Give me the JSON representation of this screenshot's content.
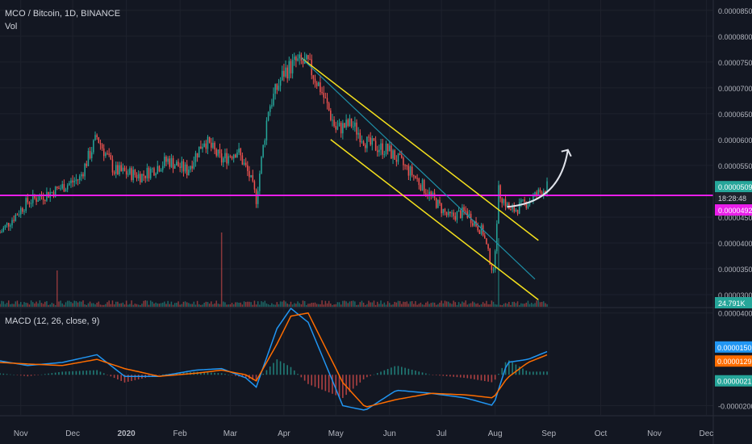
{
  "header": {
    "symbol_line": "MCO / Bitcoin, 1D, BINANCE",
    "volume_label": "Vol",
    "macd_label": "MACD (12, 26, close, 9)"
  },
  "colors": {
    "background": "#131722",
    "grid": "#1e222d",
    "candle_up": "#26a69a",
    "candle_down": "#ef5350",
    "support_line": "#e91ee9",
    "channel_lines": "#f5e11d",
    "midline": "#1e8fa6",
    "macd_line": "#2196f3",
    "signal_line": "#ff6d00",
    "annotation_arrow": "#e0e3eb"
  },
  "price_axis": {
    "ticks": [
      "0.00008500",
      "0.00008000",
      "0.00007500",
      "0.00007000",
      "0.00006500",
      "0.00006000",
      "0.00005500",
      "0.00004500",
      "0.00004000",
      "0.00003500",
      "0.00003000"
    ],
    "last_price_label": "0.00005095",
    "countdown_label": "18:28:48",
    "support_price_label": "0.00004923",
    "volume_label": "24.791K"
  },
  "macd_axis": {
    "ticks": [
      "0.0000400",
      "-0.0000200"
    ],
    "macd_value_label": "0.0000150",
    "signal_value_label": "0.0000129",
    "histogram_value_label": "0.0000021"
  },
  "time_axis": {
    "ticks": [
      "Nov",
      "Dec",
      "2020",
      "Feb",
      "Mar",
      "Apr",
      "May",
      "Jun",
      "Jul",
      "Aug",
      "Sep",
      "Oct",
      "Nov",
      "Dec"
    ]
  },
  "chart_data": {
    "type": "candlestick",
    "title": "MCO / Bitcoin, 1D, BINANCE",
    "unit": "BTC",
    "x_range": [
      "2019-10-20",
      "2020-12-05"
    ],
    "y_range": [
      2.75e-05,
      8.7e-05
    ],
    "price_path": [
      {
        "date": "2019-10-20",
        "close": 4.2e-05
      },
      {
        "date": "2019-11-05",
        "close": 4.8e-05
      },
      {
        "date": "2019-11-20",
        "close": 5e-05
      },
      {
        "date": "2019-12-05",
        "close": 5.25e-05
      },
      {
        "date": "2019-12-15",
        "close": 6.05e-05
      },
      {
        "date": "2019-12-25",
        "close": 5.4e-05
      },
      {
        "date": "2020-01-10",
        "close": 5.3e-05
      },
      {
        "date": "2020-01-25",
        "close": 5.6e-05
      },
      {
        "date": "2020-02-05",
        "close": 5.4e-05
      },
      {
        "date": "2020-02-15",
        "close": 6e-05
      },
      {
        "date": "2020-02-25",
        "close": 5.6e-05
      },
      {
        "date": "2020-03-05",
        "close": 5.8e-05
      },
      {
        "date": "2020-03-12",
        "close": 5.3e-05
      },
      {
        "date": "2020-03-16",
        "close": 4.85e-05
      },
      {
        "date": "2020-03-23",
        "close": 6.6e-05
      },
      {
        "date": "2020-04-01",
        "close": 7.3e-05
      },
      {
        "date": "2020-04-08",
        "close": 7.5e-05
      },
      {
        "date": "2020-04-15",
        "close": 7.45e-05
      },
      {
        "date": "2020-04-22",
        "close": 7e-05
      },
      {
        "date": "2020-05-01",
        "close": 6.2e-05
      },
      {
        "date": "2020-05-10",
        "close": 6.3e-05
      },
      {
        "date": "2020-05-20",
        "close": 5.9e-05
      },
      {
        "date": "2020-05-31",
        "close": 5.8e-05
      },
      {
        "date": "2020-06-15",
        "close": 5.3e-05
      },
      {
        "date": "2020-06-25",
        "close": 4.9e-05
      },
      {
        "date": "2020-07-05",
        "close": 4.5e-05
      },
      {
        "date": "2020-07-15",
        "close": 4.6e-05
      },
      {
        "date": "2020-07-25",
        "close": 4.2e-05
      },
      {
        "date": "2020-07-31",
        "close": 3.4e-05
      },
      {
        "date": "2020-08-03",
        "close": 5e-05
      },
      {
        "date": "2020-08-10",
        "close": 4.6e-05
      },
      {
        "date": "2020-08-20",
        "close": 4.8e-05
      },
      {
        "date": "2020-08-31",
        "close": 5.09e-05
      }
    ],
    "volume_spikes": [
      {
        "date": "2019-11-22",
        "relative": 0.45
      },
      {
        "date": "2020-02-25",
        "relative": 0.92
      },
      {
        "date": "2020-08-03",
        "relative": 0.85
      }
    ],
    "annotations": {
      "support_level": 4.92e-05,
      "last_price": 5.09e-05,
      "descending_channel_upper": [
        {
          "date": "2020-04-11",
          "price": 7.58e-05
        },
        {
          "date": "2020-08-26",
          "price": 4.05e-05
        }
      ],
      "descending_channel_lower": [
        {
          "date": "2020-04-28",
          "price": 6e-05
        },
        {
          "date": "2020-08-26",
          "price": 2.9e-05
        }
      ],
      "channel_midline": [
        {
          "date": "2020-04-11",
          "price": 7.58e-05
        },
        {
          "date": "2020-08-24",
          "price": 3.3e-05
        }
      ],
      "projection_arrow": [
        {
          "date": "2020-08-08",
          "price": 4.7e-05
        },
        {
          "date": "2020-09-12",
          "price": 5.8e-05
        }
      ]
    },
    "macd": {
      "range": [
        -2.6e-05,
        4.3e-05
      ],
      "macd_last": 1.5e-05,
      "signal_last": 1.29e-05,
      "histogram_last": 2.1e-06,
      "path": [
        {
          "date": "2019-10-20",
          "macd": 9e-06,
          "signal": 8e-06
        },
        {
          "date": "2019-11-05",
          "macd": 6e-06,
          "signal": 7e-06
        },
        {
          "date": "2019-11-25",
          "macd": 8e-06,
          "signal": 6e-06
        },
        {
          "date": "2019-12-15",
          "macd": 1.3e-05,
          "signal": 1e-05
        },
        {
          "date": "2019-12-31",
          "macd": -1e-06,
          "signal": 4e-06
        },
        {
          "date": "2020-01-20",
          "macd": -1e-06,
          "signal": -1e-06
        },
        {
          "date": "2020-02-10",
          "macd": 3e-06,
          "signal": 1e-06
        },
        {
          "date": "2020-02-25",
          "macd": 4e-06,
          "signal": 3e-06
        },
        {
          "date": "2020-03-10",
          "macd": -2e-06,
          "signal": 0.0
        },
        {
          "date": "2020-03-16",
          "macd": -8e-06,
          "signal": -4e-06
        },
        {
          "date": "2020-03-28",
          "macd": 3e-05,
          "signal": 2e-05
        },
        {
          "date": "2020-04-05",
          "macd": 4.3e-05,
          "signal": 3.8e-05
        },
        {
          "date": "2020-04-15",
          "macd": 3.4e-05,
          "signal": 4e-05
        },
        {
          "date": "2020-05-05",
          "macd": -2e-05,
          "signal": -5e-06
        },
        {
          "date": "2020-05-18",
          "macd": -2.3e-05,
          "signal": -2.1e-05
        },
        {
          "date": "2020-06-05",
          "macd": -1e-05,
          "signal": -1.6e-05
        },
        {
          "date": "2020-06-25",
          "macd": -1.2e-05,
          "signal": -1.2e-05
        },
        {
          "date": "2020-07-15",
          "macd": -1.5e-05,
          "signal": -1.3e-05
        },
        {
          "date": "2020-07-31",
          "macd": -2e-05,
          "signal": -1.5e-05
        },
        {
          "date": "2020-08-08",
          "macd": 8e-06,
          "signal": -2e-06
        },
        {
          "date": "2020-08-20",
          "macd": 1e-05,
          "signal": 8e-06
        },
        {
          "date": "2020-08-31",
          "macd": 1.5e-05,
          "signal": 1.29e-05
        }
      ]
    }
  }
}
